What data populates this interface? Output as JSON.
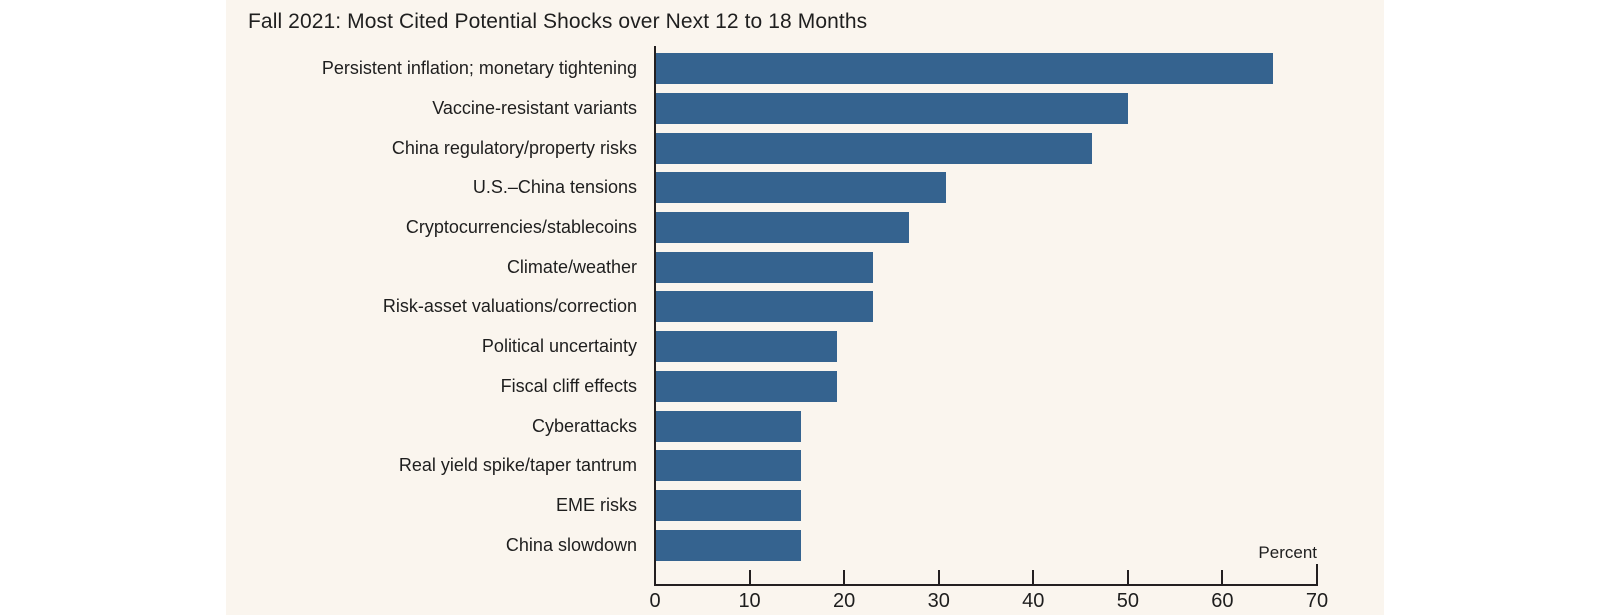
{
  "chart_data": {
    "type": "bar",
    "orientation": "horizontal",
    "title": "Fall 2021: Most Cited Potential Shocks over Next 12 to 18 Months",
    "unit_label": "Percent",
    "categories": [
      "Persistent inflation; monetary tightening",
      "Vaccine-resistant variants",
      "China regulatory/property risks",
      "U.S.–China tensions",
      "Cryptocurrencies/stablecoins",
      "Climate/weather",
      "Risk-asset valuations/correction",
      "Political uncertainty",
      "Fiscal cliff effects",
      "Cyberattacks",
      "Real yield spike/taper tantrum",
      "EME risks",
      "China slowdown"
    ],
    "values": [
      65.4,
      50.0,
      46.2,
      30.8,
      26.9,
      23.1,
      23.1,
      19.2,
      19.2,
      15.4,
      15.4,
      15.4,
      15.4
    ],
    "xlim": [
      0,
      70
    ],
    "x_ticks": [
      0,
      10,
      20,
      30,
      40,
      50,
      60,
      70
    ],
    "grid": false,
    "legend": "none",
    "colors": {
      "bar": "#35638f",
      "panel_background": "#faf5ee",
      "page_background": "#ffffff",
      "text": "#1e1e1e",
      "axis": "#231f20"
    }
  }
}
